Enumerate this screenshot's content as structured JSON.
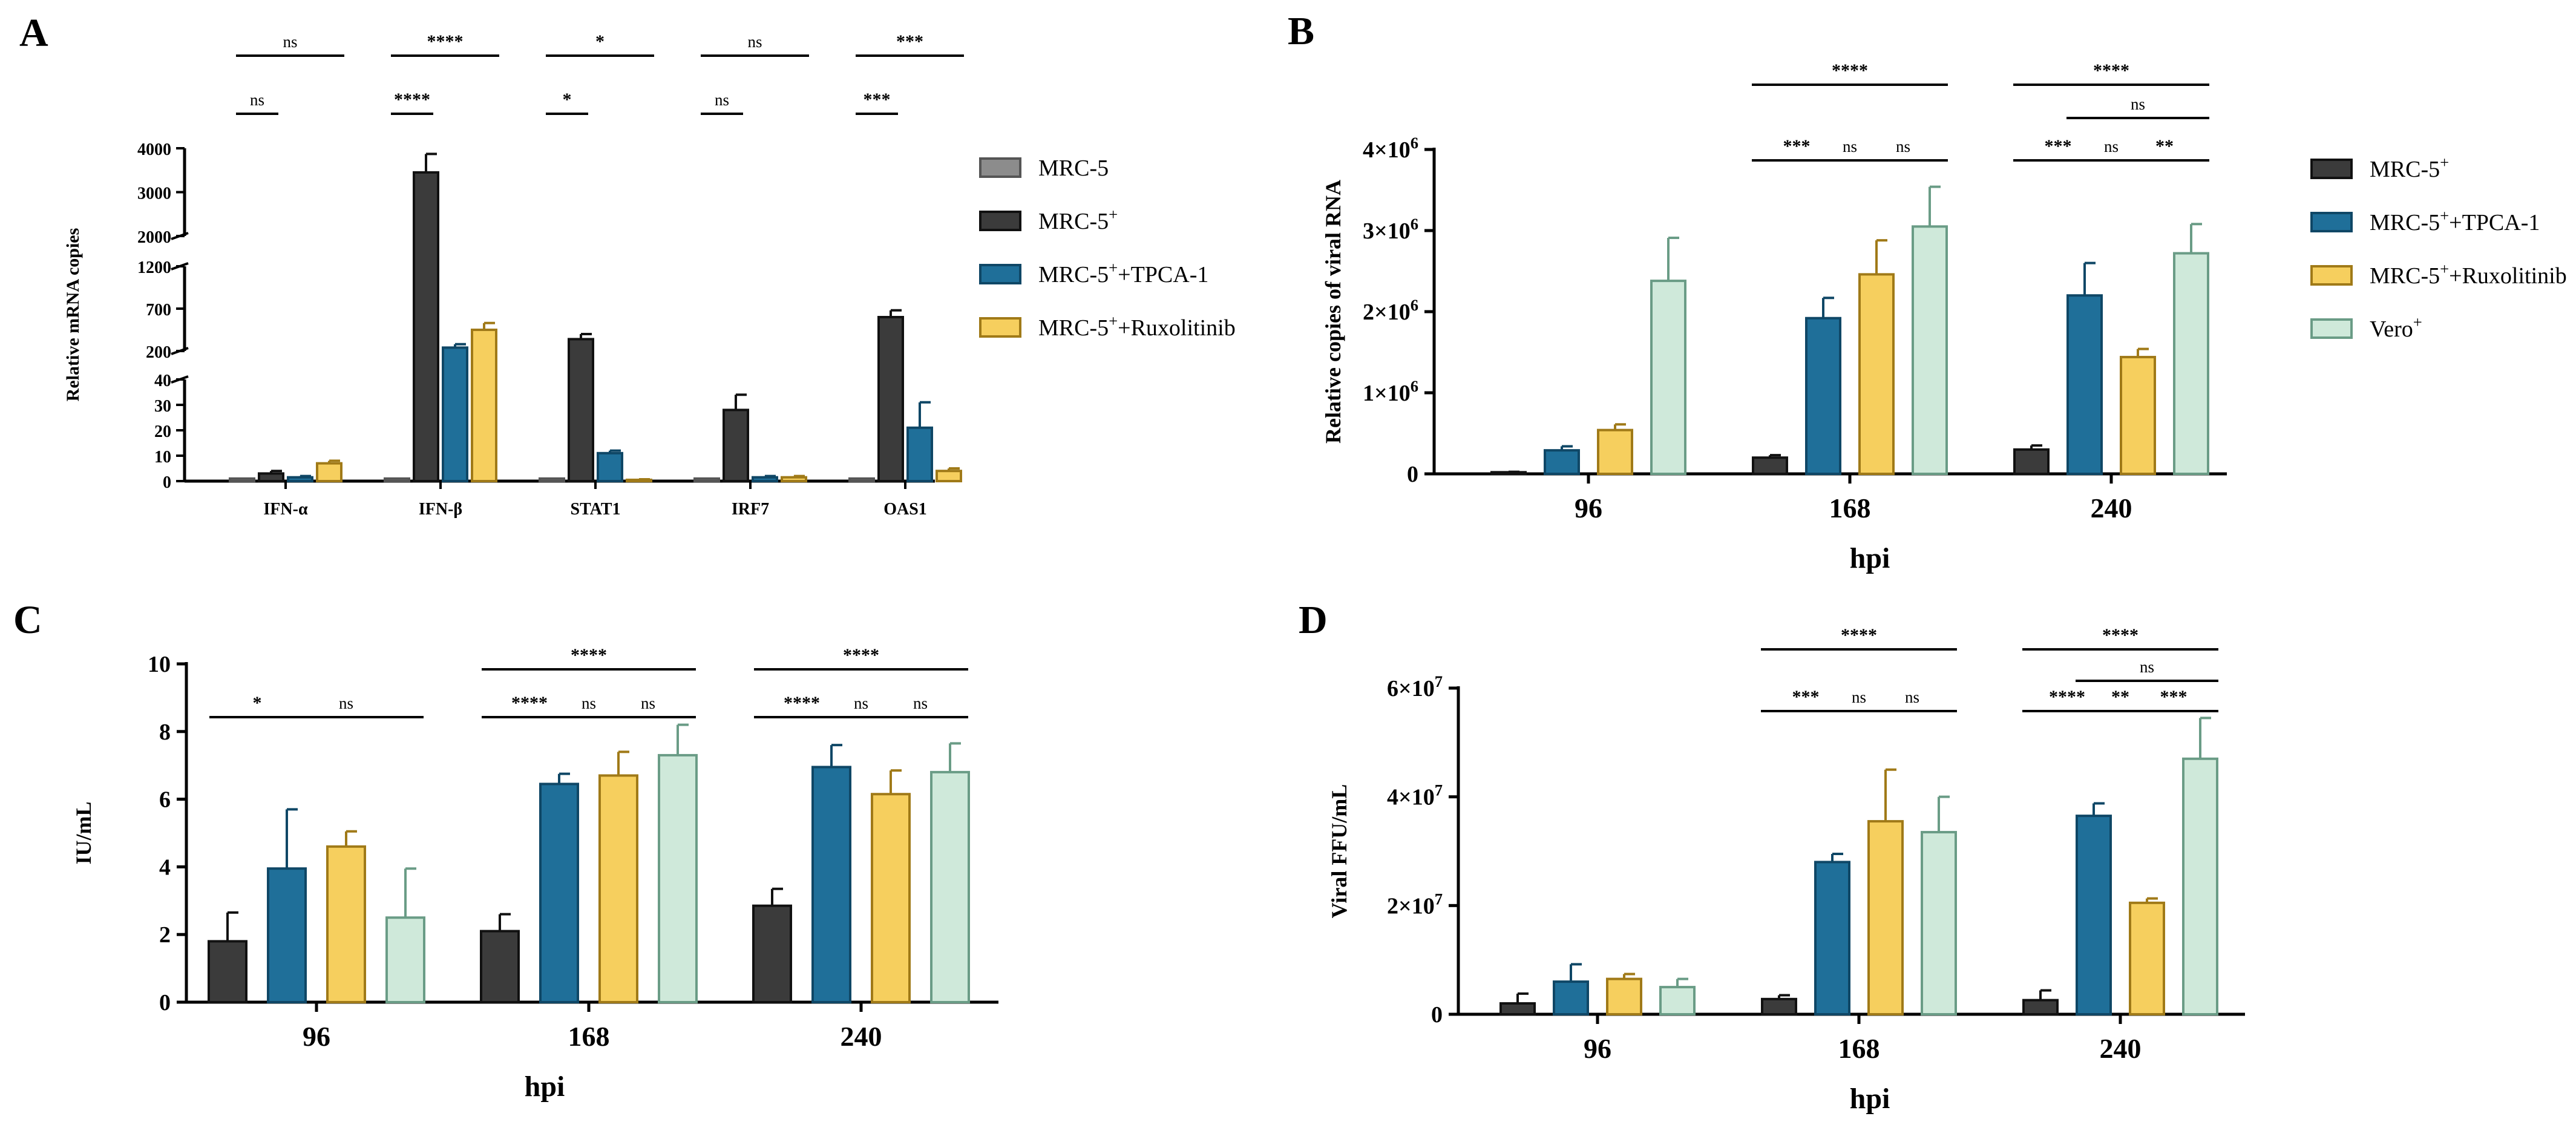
{
  "colors": {
    "MRC-5": "#8c8c8c",
    "MRC-5+": "#3b3b3b",
    "MRC-5+ +TPCA-1": "#1f6f99",
    "MRC-5+ +Ruxolitinib": "#f6cf5e",
    "Vero+": "#cfe9da"
  },
  "edges": {
    "MRC-5": "#555555",
    "MRC-5+": "#111111",
    "MRC-5+ +TPCA-1": "#0f4766",
    "MRC-5+ +Ruxolitinib": "#a07a18",
    "Vero+": "#6a9c86"
  },
  "chart_data": [
    {
      "panel": "A",
      "type": "bar",
      "ylabel": "Relative mRNA copies",
      "xlabel": "",
      "categories": [
        "IFN-α",
        "IFN-β",
        "STAT1",
        "IRF7",
        "OAS1"
      ],
      "y_segments": [
        [
          0,
          40
        ],
        [
          200,
          1200
        ],
        [
          2000,
          4000
        ]
      ],
      "yticks": [
        [
          0,
          10,
          20,
          30,
          40
        ],
        [
          200,
          700,
          1200
        ],
        [
          2000,
          3000,
          4000
        ]
      ],
      "series": [
        {
          "name": "MRC-5",
          "values": [
            1,
            1,
            1,
            1,
            1
          ],
          "errors": [
            0,
            0,
            0,
            0,
            0
          ]
        },
        {
          "name": "MRC-5+",
          "values": [
            3,
            3450,
            340,
            28,
            600
          ],
          "errors": [
            1,
            420,
            60,
            6,
            80
          ]
        },
        {
          "name": "MRC-5+ +TPCA-1",
          "values": [
            1.5,
            240,
            11,
            1.5,
            21
          ],
          "errors": [
            0.5,
            40,
            1,
            0.5,
            10
          ]
        },
        {
          "name": "MRC-5+ +Ruxolitinib",
          "values": [
            7,
            450,
            0.5,
            1.5,
            4
          ],
          "errors": [
            1,
            80,
            0.2,
            0.5,
            1
          ]
        }
      ],
      "legend": [
        {
          "key": "MRC-5",
          "label": "MRC-5"
        },
        {
          "key": "MRC-5+",
          "label": "MRC-5",
          "sup": "+"
        },
        {
          "key": "MRC-5+ +TPCA-1",
          "label": "MRC-5",
          "sup": "+",
          "suffix": "+TPCA-1"
        },
        {
          "key": "MRC-5+ +Ruxolitinib",
          "label": "MRC-5",
          "sup": "+",
          "suffix": "+Ruxolitinib"
        }
      ],
      "significance": [
        {
          "category": "IFN-α",
          "upper": "ns",
          "lower": "ns"
        },
        {
          "category": "IFN-β",
          "upper": "****",
          "lower": "****"
        },
        {
          "category": "STAT1",
          "upper": "*",
          "lower": "*"
        },
        {
          "category": "IRF7",
          "upper": "ns",
          "lower": "ns"
        },
        {
          "category": "OAS1",
          "upper": "***",
          "lower": "***"
        }
      ]
    },
    {
      "panel": "B",
      "type": "bar",
      "ylabel": "Relative copies of viral RNA",
      "xlabel": "hpi",
      "categories": [
        "96",
        "168",
        "240"
      ],
      "ylim": [
        0,
        4000000
      ],
      "yticks": [
        {
          "value": 0,
          "label": "0"
        },
        {
          "value": 1000000,
          "label": "1×10",
          "exp": "6"
        },
        {
          "value": 2000000,
          "label": "2×10",
          "exp": "6"
        },
        {
          "value": 3000000,
          "label": "3×10",
          "exp": "6"
        },
        {
          "value": 4000000,
          "label": "4×10",
          "exp": "6"
        }
      ],
      "series": [
        {
          "name": "MRC-5+",
          "values": [
            20000,
            200000,
            300000
          ],
          "errors": [
            5000,
            30000,
            50000
          ]
        },
        {
          "name": "MRC-5+ +TPCA-1",
          "values": [
            290000,
            1920000,
            2200000
          ],
          "errors": [
            50000,
            250000,
            400000
          ]
        },
        {
          "name": "MRC-5+ +Ruxolitinib",
          "values": [
            540000,
            2460000,
            1440000
          ],
          "errors": [
            70000,
            420000,
            100000
          ]
        },
        {
          "name": "Vero+",
          "values": [
            2380000,
            3050000,
            2720000
          ],
          "errors": [
            530000,
            490000,
            360000
          ]
        }
      ],
      "legend": [
        {
          "key": "MRC-5+",
          "label": "MRC-5",
          "sup": "+"
        },
        {
          "key": "MRC-5+ +TPCA-1",
          "label": "MRC-5",
          "sup": "+",
          "suffix": "+TPCA-1"
        },
        {
          "key": "MRC-5+ +Ruxolitinib",
          "label": "MRC-5",
          "sup": "+",
          "suffix": "+Ruxolitinib"
        },
        {
          "key": "Vero+",
          "label": "Vero",
          "sup": "+"
        }
      ],
      "significance": [
        {
          "category": "168",
          "pairs": [
            [
              0,
              1,
              "***"
            ],
            [
              1,
              2,
              "ns"
            ],
            [
              2,
              3,
              "ns"
            ]
          ],
          "overall": "****"
        },
        {
          "category": "240",
          "pairs": [
            [
              0,
              1,
              "***"
            ],
            [
              1,
              2,
              "ns"
            ],
            [
              2,
              3,
              "**"
            ]
          ],
          "overall": "****",
          "middle": "ns"
        }
      ]
    },
    {
      "panel": "C",
      "type": "bar",
      "ylabel": "IU/mL",
      "xlabel": "hpi",
      "categories": [
        "96",
        "168",
        "240"
      ],
      "ylim": [
        0,
        10
      ],
      "yticks": [
        {
          "value": 0,
          "label": "0"
        },
        {
          "value": 2,
          "label": "2"
        },
        {
          "value": 4,
          "label": "4"
        },
        {
          "value": 6,
          "label": "6"
        },
        {
          "value": 8,
          "label": "8"
        },
        {
          "value": 10,
          "label": "10"
        }
      ],
      "series": [
        {
          "name": "MRC-5+",
          "values": [
            1.8,
            2.1,
            2.85
          ],
          "errors": [
            0.85,
            0.5,
            0.5
          ]
        },
        {
          "name": "MRC-5+ +TPCA-1",
          "values": [
            3.95,
            6.45,
            6.95
          ],
          "errors": [
            1.75,
            0.3,
            0.65
          ]
        },
        {
          "name": "MRC-5+ +Ruxolitinib",
          "values": [
            4.6,
            6.7,
            6.15
          ],
          "errors": [
            0.45,
            0.7,
            0.7
          ]
        },
        {
          "name": "Vero+",
          "values": [
            2.5,
            7.3,
            6.8
          ],
          "errors": [
            1.45,
            0.9,
            0.85
          ]
        }
      ],
      "significance": [
        {
          "category": "96",
          "pairs": [
            [
              0,
              1,
              "*"
            ],
            [
              1,
              3,
              "ns"
            ]
          ]
        },
        {
          "category": "168",
          "pairs": [
            [
              0,
              1,
              "****"
            ],
            [
              1,
              2,
              "ns"
            ],
            [
              2,
              3,
              "ns"
            ]
          ],
          "overall": "****"
        },
        {
          "category": "240",
          "pairs": [
            [
              0,
              1,
              "****"
            ],
            [
              1,
              2,
              "ns"
            ],
            [
              2,
              3,
              "ns"
            ]
          ],
          "overall": "****"
        }
      ]
    },
    {
      "panel": "D",
      "type": "bar",
      "ylabel": "Viral FFU/mL",
      "xlabel": "hpi",
      "categories": [
        "96",
        "168",
        "240"
      ],
      "ylim": [
        0,
        60000000
      ],
      "yticks": [
        {
          "value": 0,
          "label": "0"
        },
        {
          "value": 20000000,
          "label": "2×10",
          "exp": "7"
        },
        {
          "value": 40000000,
          "label": "4×10",
          "exp": "7"
        },
        {
          "value": 60000000,
          "label": "6×10",
          "exp": "7"
        }
      ],
      "series": [
        {
          "name": "MRC-5+",
          "values": [
            2000000,
            2800000,
            2600000
          ],
          "errors": [
            1800000,
            700000,
            1800000
          ]
        },
        {
          "name": "MRC-5+ +TPCA-1",
          "values": [
            6000000,
            28000000,
            36500000
          ],
          "errors": [
            3200000,
            1500000,
            2300000
          ]
        },
        {
          "name": "MRC-5+ +Ruxolitinib",
          "values": [
            6500000,
            35500000,
            20500000
          ],
          "errors": [
            900000,
            9500000,
            800000
          ]
        },
        {
          "name": "Vero+",
          "values": [
            5000000,
            33500000,
            47000000
          ],
          "errors": [
            1500000,
            6500000,
            7500000
          ]
        }
      ],
      "significance": [
        {
          "category": "168",
          "pairs": [
            [
              0,
              1,
              "***"
            ],
            [
              1,
              2,
              "ns"
            ],
            [
              2,
              3,
              "ns"
            ]
          ],
          "overall": "****"
        },
        {
          "category": "240",
          "pairs": [
            [
              0,
              1,
              "****"
            ],
            [
              1,
              2,
              "**"
            ],
            [
              2,
              3,
              "***"
            ]
          ],
          "overall": "****",
          "middle": "ns"
        }
      ]
    }
  ]
}
